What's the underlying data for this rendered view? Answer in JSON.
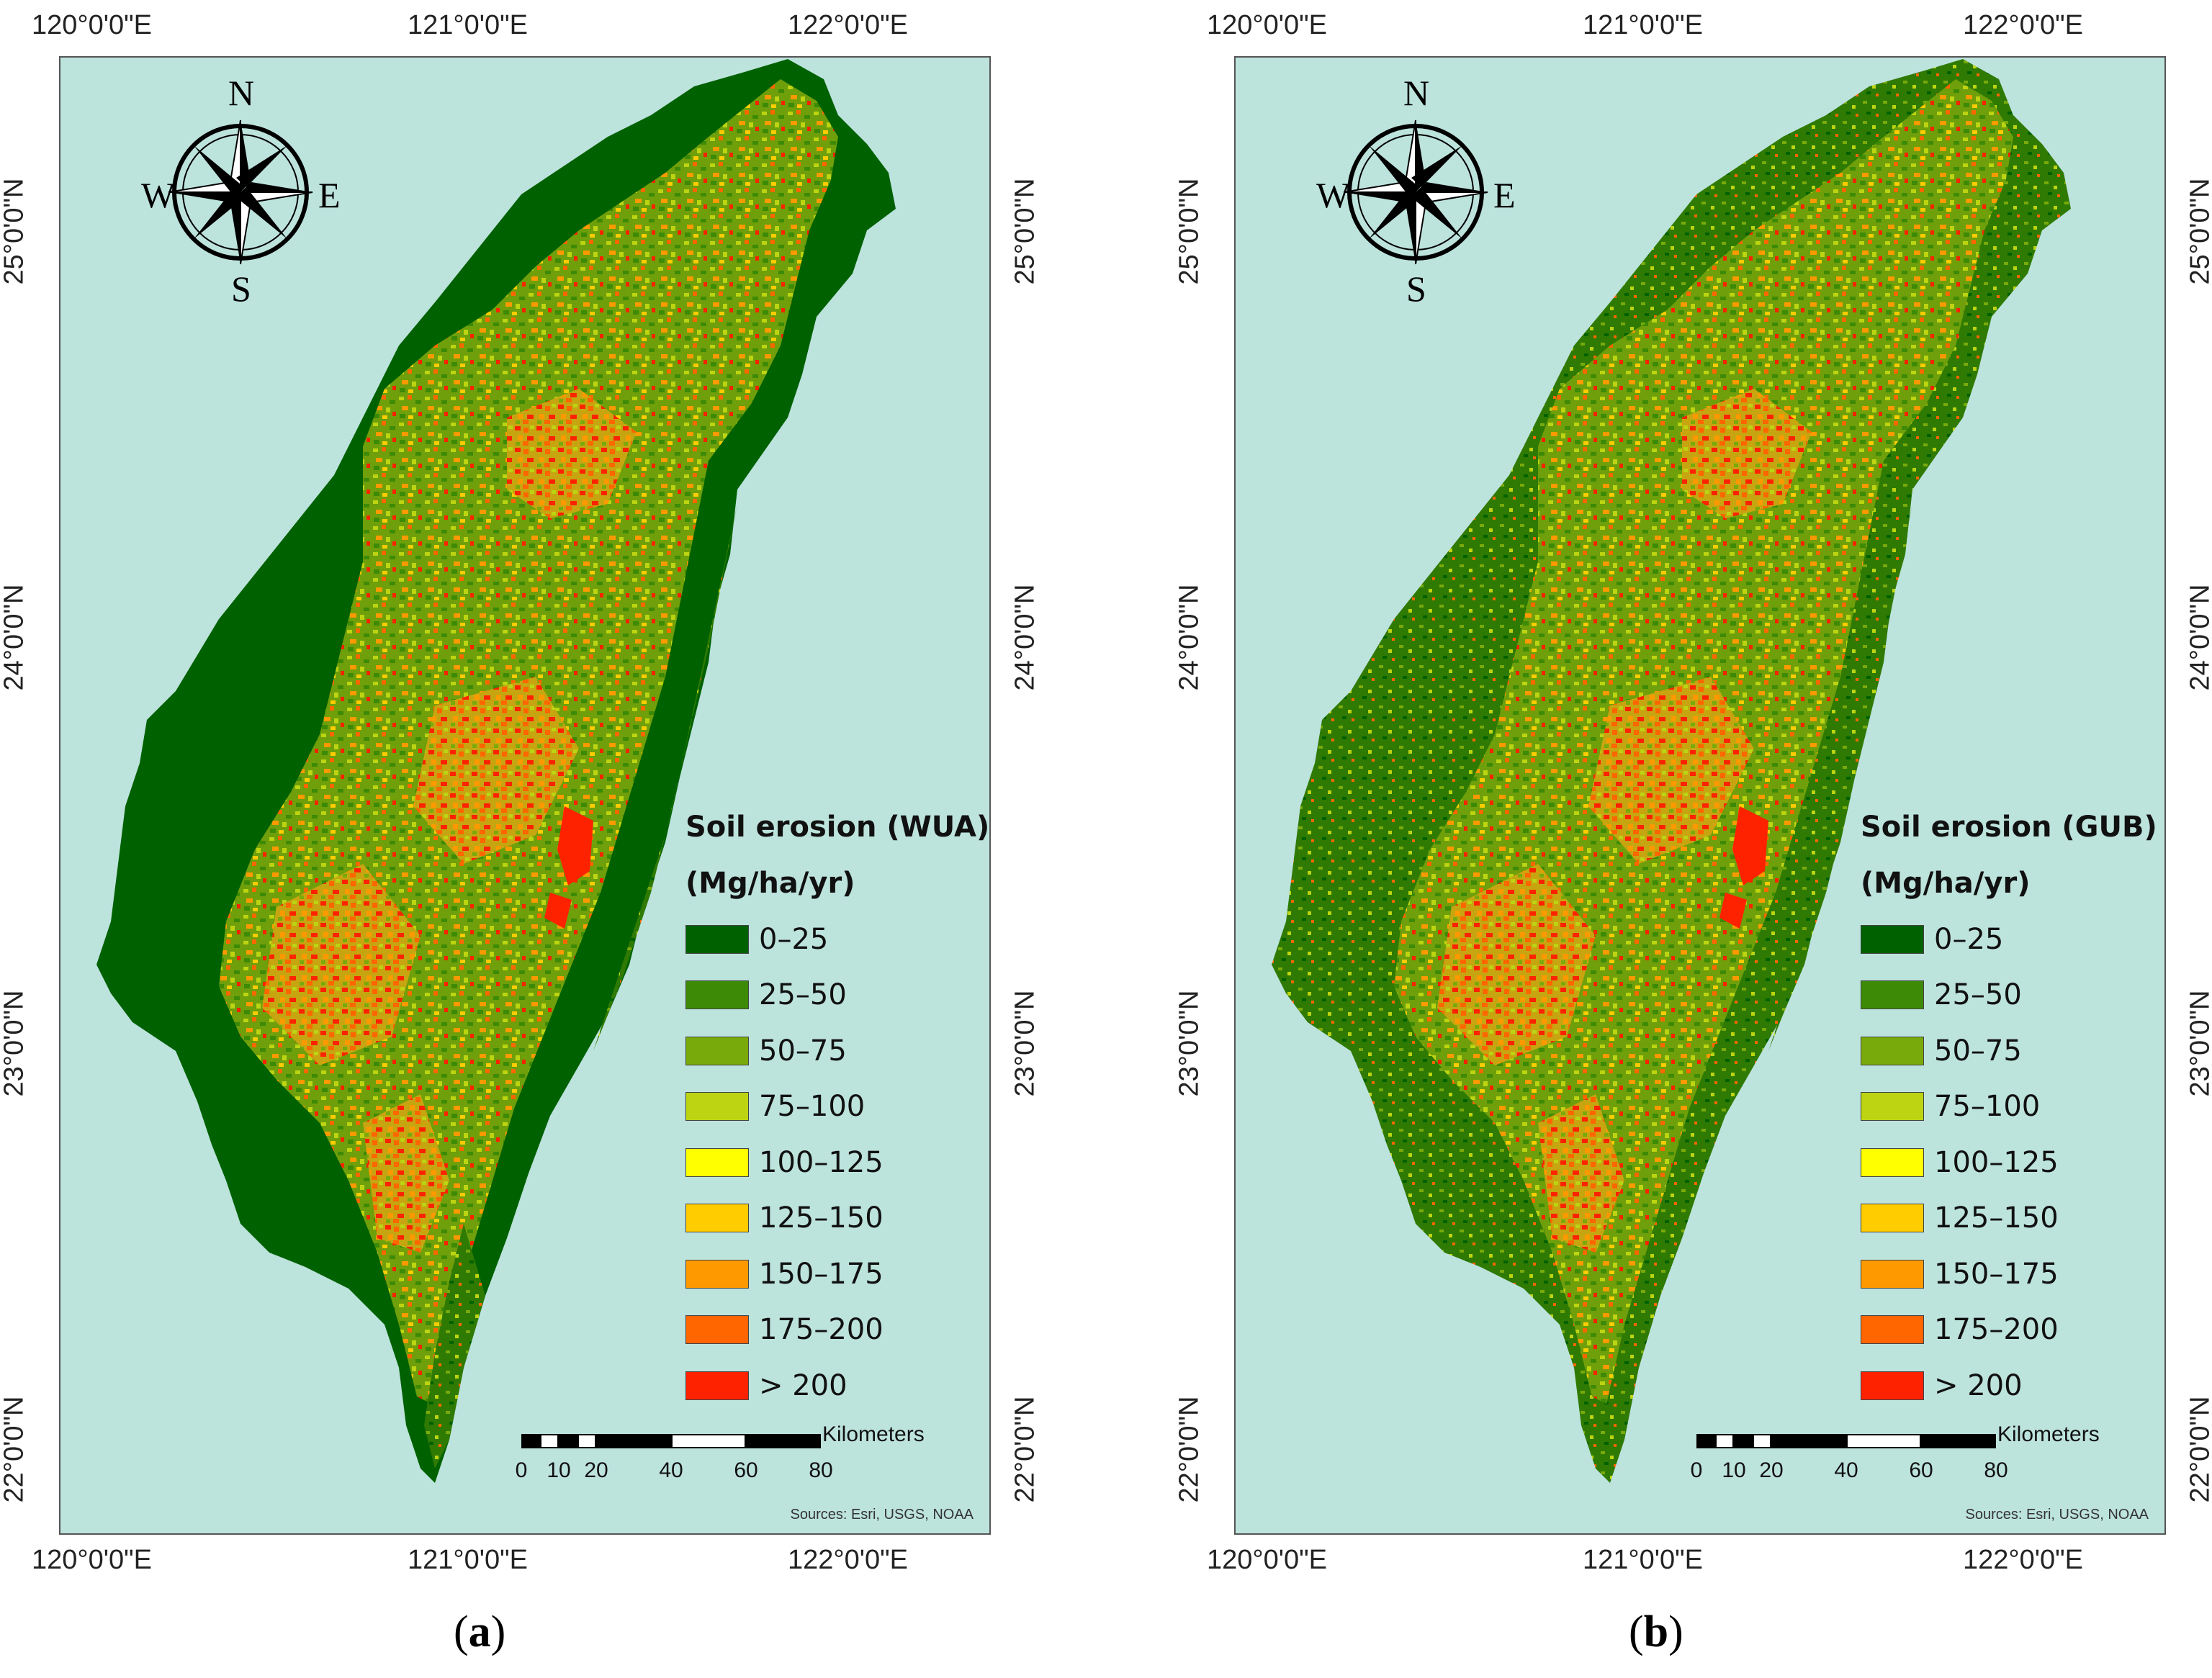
{
  "longitude_labels": [
    "120°0'0\"E",
    "121°0'0\"E",
    "122°0'0\"E"
  ],
  "latitude_labels": [
    "25°0'0\"N",
    "24°0'0\"N",
    "23°0'0\"N",
    "22°0'0\"N"
  ],
  "compass": {
    "n": "N",
    "s": "S",
    "e": "E",
    "w": "W"
  },
  "legend": {
    "units": "(Mg/ha/yr)",
    "classes": [
      {
        "label": "0–25",
        "color": "#006100"
      },
      {
        "label": "25–50",
        "color": "#3d8a06"
      },
      {
        "label": "50–75",
        "color": "#79aa0b"
      },
      {
        "label": "75–100",
        "color": "#bcd411"
      },
      {
        "label": "100–125",
        "color": "#ffff00"
      },
      {
        "label": "125–150",
        "color": "#ffcc00"
      },
      {
        "label": "150–175",
        "color": "#ff9900"
      },
      {
        "label": "175–200",
        "color": "#ff6600"
      },
      {
        "label": "> 200",
        "color": "#ff2200"
      }
    ]
  },
  "scale_bar": {
    "unit": "Kilometers",
    "ticks": [
      "0",
      "10",
      "20",
      "40",
      "60",
      "80"
    ]
  },
  "source": "Sources: Esri, USGS, NOAA",
  "colors": {
    "sea": "#bde3dd",
    "lowland": "#006100"
  },
  "panels": [
    {
      "title": "Soil erosion (WUA)",
      "caption_letter": "a"
    },
    {
      "title": "Soil erosion (GUB)",
      "caption_letter": "b"
    }
  ]
}
